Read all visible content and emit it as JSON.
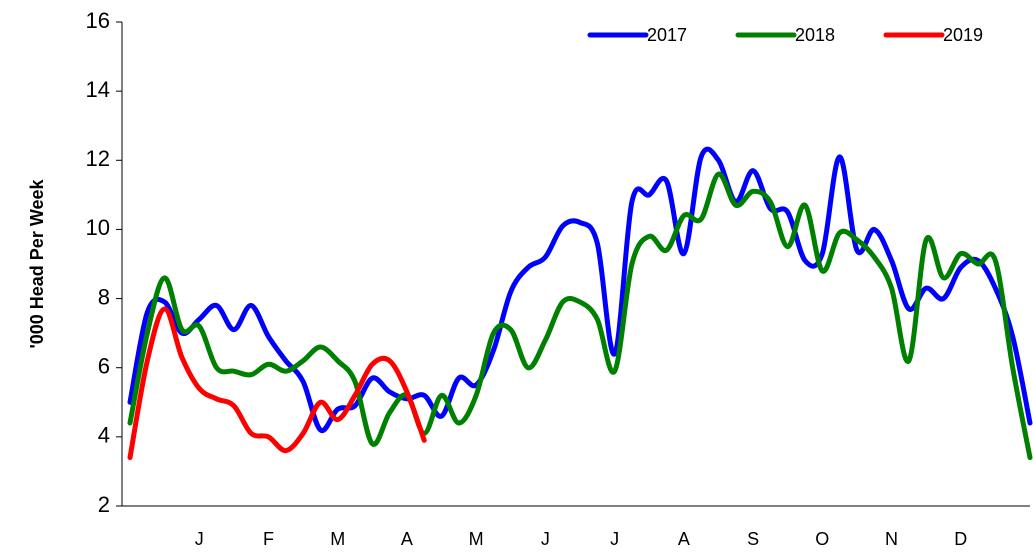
{
  "chart_data": {
    "type": "line",
    "y_label": "'000 Head Per Week",
    "categories": [
      null,
      null,
      null,
      null,
      "J",
      null,
      null,
      null,
      "F",
      null,
      null,
      null,
      "M",
      null,
      null,
      null,
      "A",
      null,
      null,
      null,
      "M",
      null,
      null,
      null,
      "J",
      null,
      null,
      null,
      "J",
      null,
      null,
      null,
      "A",
      null,
      null,
      null,
      "S",
      null,
      null,
      null,
      "O",
      null,
      null,
      null,
      "N",
      null,
      null,
      null,
      "D",
      null,
      null,
      null,
      null
    ],
    "series": [
      {
        "name": "2017",
        "color": "#0000ff",
        "values": [
          5.0,
          7.6,
          7.9,
          7.0,
          7.4,
          7.8,
          7.1,
          7.8,
          6.9,
          6.2,
          5.6,
          4.2,
          4.8,
          4.9,
          5.7,
          5.3,
          5.1,
          5.2,
          4.6,
          5.7,
          5.5,
          6.5,
          8.2,
          8.9,
          9.2,
          10.1,
          10.2,
          9.6,
          6.4,
          10.8,
          11.0,
          11.4,
          9.3,
          12.1,
          12.0,
          10.8,
          11.7,
          10.6,
          10.5,
          9.1,
          9.3,
          12.1,
          9.4,
          10.0,
          9.1,
          7.7,
          8.3,
          8.0,
          8.9,
          9.1,
          8.3,
          6.9,
          4.4
        ]
      },
      {
        "name": "2018",
        "color": "#008000",
        "values": [
          4.4,
          7.0,
          8.6,
          7.1,
          7.2,
          6.0,
          5.9,
          5.8,
          6.1,
          5.9,
          6.2,
          6.6,
          6.2,
          5.6,
          3.8,
          4.7,
          5.2,
          4.1,
          5.2,
          4.4,
          5.2,
          7.0,
          7.1,
          6.0,
          6.8,
          7.9,
          7.9,
          7.4,
          5.9,
          9.0,
          9.8,
          9.4,
          10.4,
          10.3,
          11.6,
          10.7,
          11.1,
          10.8,
          9.5,
          10.7,
          8.8,
          9.9,
          9.7,
          9.2,
          8.3,
          6.2,
          9.7,
          8.6,
          9.3,
          9.0,
          9.1,
          6.0,
          3.4
        ]
      },
      {
        "name": "2019",
        "color": "#ff0000",
        "values": [
          3.4,
          6.2,
          7.7,
          6.3,
          5.4,
          5.1,
          4.9,
          4.1,
          4.0,
          3.6,
          4.1,
          5.0,
          4.5,
          5.2,
          6.1,
          6.2,
          5.3,
          3.9,
          null,
          null,
          null,
          null,
          null,
          null,
          null,
          null,
          null,
          null,
          null,
          null,
          null,
          null,
          null,
          null,
          null,
          null,
          null,
          null,
          null,
          null,
          null,
          null,
          null,
          null,
          null,
          null,
          null,
          null,
          null,
          null,
          null,
          null,
          null
        ]
      }
    ],
    "ylim": [
      2,
      16
    ],
    "yticks": [
      2,
      4,
      6,
      8,
      10,
      12,
      14,
      16
    ],
    "legend": "top-right"
  }
}
